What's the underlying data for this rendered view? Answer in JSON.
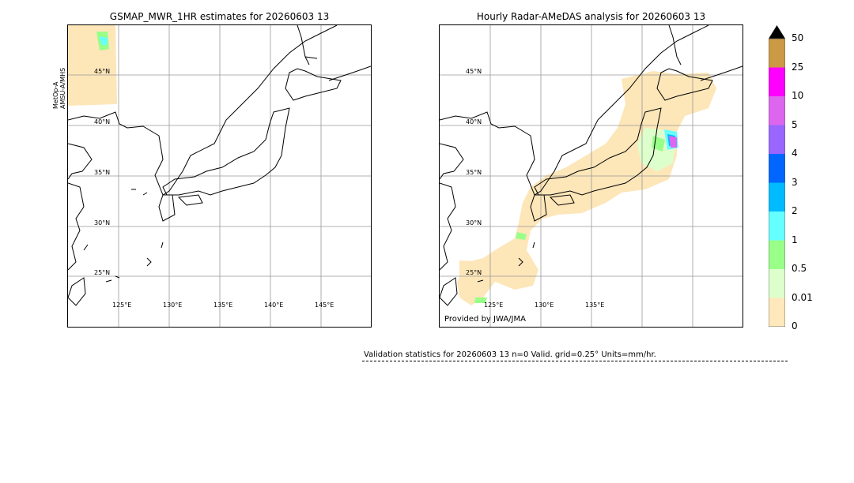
{
  "left_panel": {
    "title": "GSMAP_MWR_1HR estimates for 20260603 13",
    "side_label_line1": "MetOp-A",
    "side_label_line2": "AMSU-A/MHS",
    "lat_labels": [
      "45°N",
      "40°N",
      "35°N",
      "30°N",
      "25°N"
    ],
    "lon_labels": [
      "125°E",
      "130°E",
      "135°E",
      "140°E",
      "145°E"
    ]
  },
  "right_panel": {
    "title": "Hourly Radar-AMeDAS analysis for 20260603 13",
    "lat_labels": [
      "45°N",
      "40°N",
      "35°N",
      "30°N",
      "25°N"
    ],
    "lon_labels": [
      "125°E",
      "130°E",
      "135°E"
    ],
    "credit": "Provided by JWA/JMA"
  },
  "colorbar": {
    "labels": [
      "50",
      "25",
      "10",
      "5",
      "4",
      "3",
      "2",
      "1",
      "0.5",
      "0.01",
      "0"
    ],
    "colors_top_to_bottom": [
      "#cc9944",
      "#ff00ff",
      "#dd66ee",
      "#9966ff",
      "#0066ff",
      "#00bbff",
      "#66ffff",
      "#99ff88",
      "#ddffcc",
      "#ffe8bb"
    ],
    "over_color": "#000000"
  },
  "validation": {
    "text": "Validation statistics for 20260603 13  n=0 Valid. grid=0.25° Units=mm/hr."
  },
  "colors": {
    "land_outline": "#000000",
    "grid": "#999999",
    "light_rain": "#fde6b8"
  }
}
